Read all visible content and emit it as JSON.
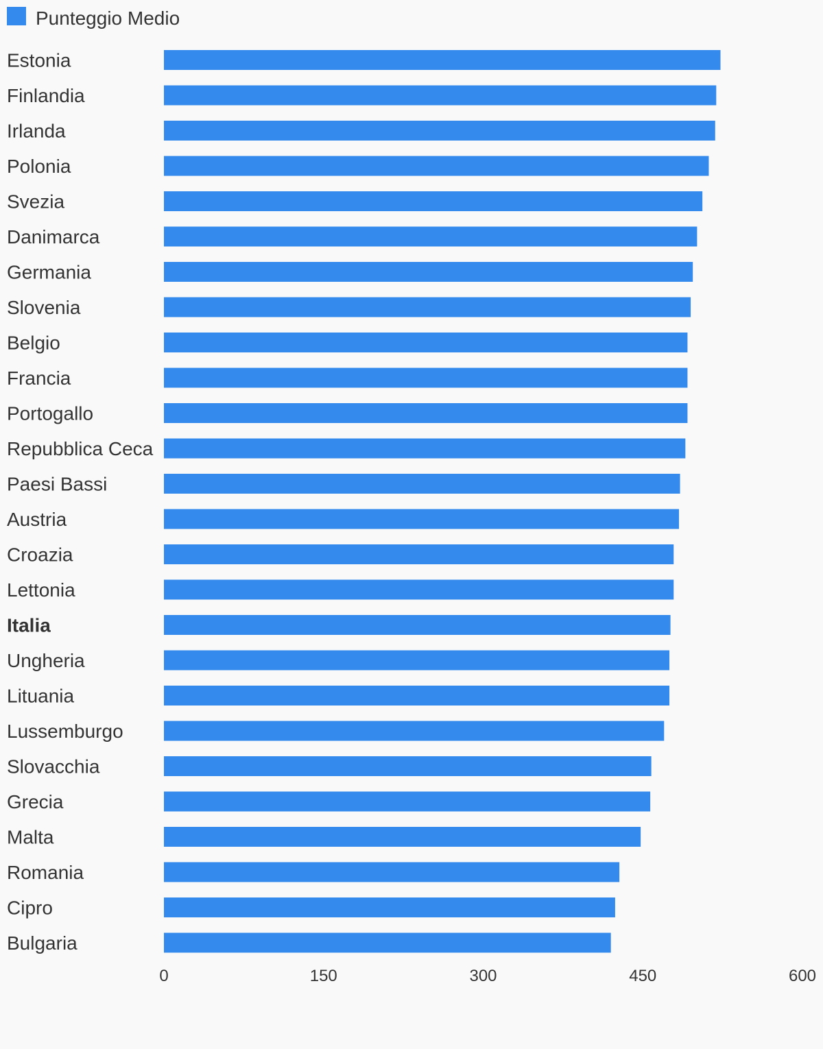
{
  "chart_data": {
    "type": "bar",
    "orientation": "horizontal",
    "categories": [
      "Estonia",
      "Finlandia",
      "Irlanda",
      "Polonia",
      "Svezia",
      "Danimarca",
      "Germania",
      "Slovenia",
      "Belgio",
      "Francia",
      "Portogallo",
      "Repubblica Ceca",
      "Paesi Bassi",
      "Austria",
      "Croazia",
      "Lettonia",
      "Italia",
      "Ungheria",
      "Lituania",
      "Lussemburgo",
      "Slovacchia",
      "Grecia",
      "Malta",
      "Romania",
      "Cipro",
      "Bulgaria"
    ],
    "series": [
      {
        "name": "Punteggio Medio",
        "color": "#348bed",
        "values": [
          523,
          519,
          518,
          512,
          506,
          501,
          497,
          495,
          492,
          492,
          492,
          490,
          485,
          484,
          479,
          479,
          476,
          475,
          475,
          470,
          458,
          457,
          448,
          428,
          424,
          420
        ]
      }
    ],
    "highlight": [
      "Italia"
    ],
    "xlim": [
      0,
      600
    ],
    "xticks": [
      "0",
      "150",
      "300",
      "450",
      "600"
    ],
    "legend_position": "top-left",
    "grid": false,
    "title": "",
    "xlabel": "",
    "ylabel": ""
  }
}
